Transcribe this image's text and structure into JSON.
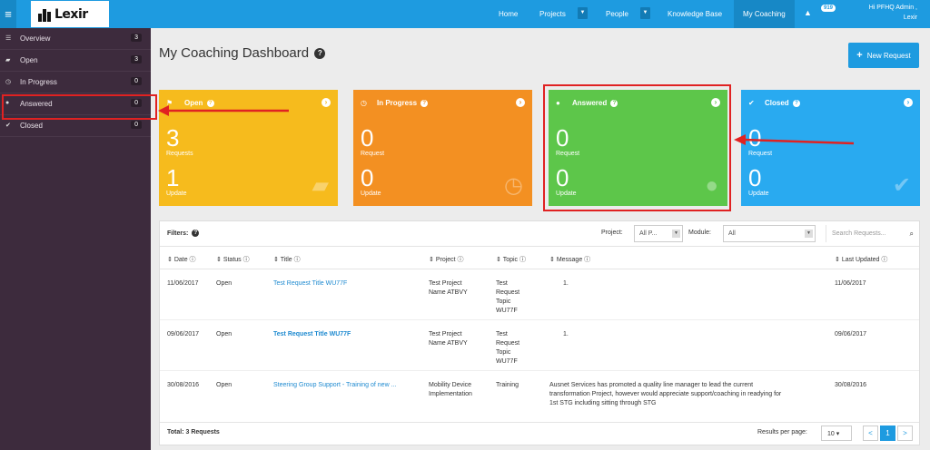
{
  "app": {
    "brand": "Lexir"
  },
  "nav": {
    "home": "Home",
    "projects": "Projects",
    "people": "People",
    "knowledge_base": "Knowledge Base",
    "my_coaching": "My Coaching",
    "notification_count": "919",
    "user_line1": "Hi PFHQ Admin ,",
    "user_line2": "Lexir"
  },
  "sidebar": {
    "items": [
      {
        "label": "Overview",
        "count": "3",
        "icon": "list-icon"
      },
      {
        "label": "Open",
        "count": "3",
        "icon": "folder-icon"
      },
      {
        "label": "In Progress",
        "count": "0",
        "icon": "clock-icon"
      },
      {
        "label": "Answered",
        "count": "0",
        "icon": "comment-icon"
      },
      {
        "label": "Closed",
        "count": "0",
        "icon": "check-icon"
      }
    ]
  },
  "page": {
    "title": "My Coaching Dashboard",
    "new_request": "New Request"
  },
  "cards": [
    {
      "title": "Open",
      "count1": "3",
      "label1": "Requests",
      "count2": "1",
      "label2": "Update",
      "color": "#f6bb1d"
    },
    {
      "title": "In Progress",
      "count1": "0",
      "label1": "Request",
      "count2": "0",
      "label2": "Update",
      "color": "#f39022"
    },
    {
      "title": "Answered",
      "count1": "0",
      "label1": "Request",
      "count2": "0",
      "label2": "Update",
      "color": "#5dc64a"
    },
    {
      "title": "Closed",
      "count1": "0",
      "label1": "Request",
      "count2": "0",
      "label2": "Update",
      "color": "#29aaf0"
    }
  ],
  "filters": {
    "label": "Filters:",
    "project_label": "Project:",
    "project_value": "All P...",
    "module_label": "Module:",
    "module_value": "All",
    "search_placeholder": "Search Requests..."
  },
  "table": {
    "headers": [
      "Date",
      "Status",
      "Title",
      "Project",
      "Topic",
      "Message",
      "Last Updated"
    ],
    "rows": [
      {
        "date": "11/06/2017",
        "status": "Open",
        "title": "Test Request Title WU77F",
        "project1": "Test Project",
        "project2": "Name ATBVY",
        "topic1": "Test",
        "topic2": "Request",
        "topic3": "Topic",
        "topic4": "WU77F",
        "message1": "1.",
        "message2": "",
        "message3": "",
        "updated": "11/06/2017"
      },
      {
        "date": "09/06/2017",
        "status": "Open",
        "title": "Test Request Title WU77F",
        "project1": "Test Project",
        "project2": "Name ATBVY",
        "topic1": "Test",
        "topic2": "Request",
        "topic3": "Topic",
        "topic4": "WU77F",
        "message1": "1.",
        "message2": "",
        "message3": "",
        "updated": "09/06/2017"
      },
      {
        "date": "30/08/2016",
        "status": "Open",
        "title": "Steering Group Support - Training of new ...",
        "project1": "Mobility Device",
        "project2": "Implementation",
        "topic1": "Training",
        "topic2": "",
        "topic3": "",
        "topic4": "",
        "message1": "Ausnet Services has promoted a quality line manager to lead the current",
        "message2": "transformation Project, however would appreciate support/coaching in readying for",
        "message3": "1st STG including sitting through STG",
        "updated": "30/08/2016"
      }
    ],
    "total": "Total: 3 Requests",
    "results_per_page_label": "Results per page:",
    "results_per_page": "10",
    "page_prev": "<",
    "page_current": "1",
    "page_next": ">"
  },
  "colors": {
    "accent": "#1e9be0",
    "sidebar": "#3d2b3d",
    "highlight": "#e02222"
  }
}
